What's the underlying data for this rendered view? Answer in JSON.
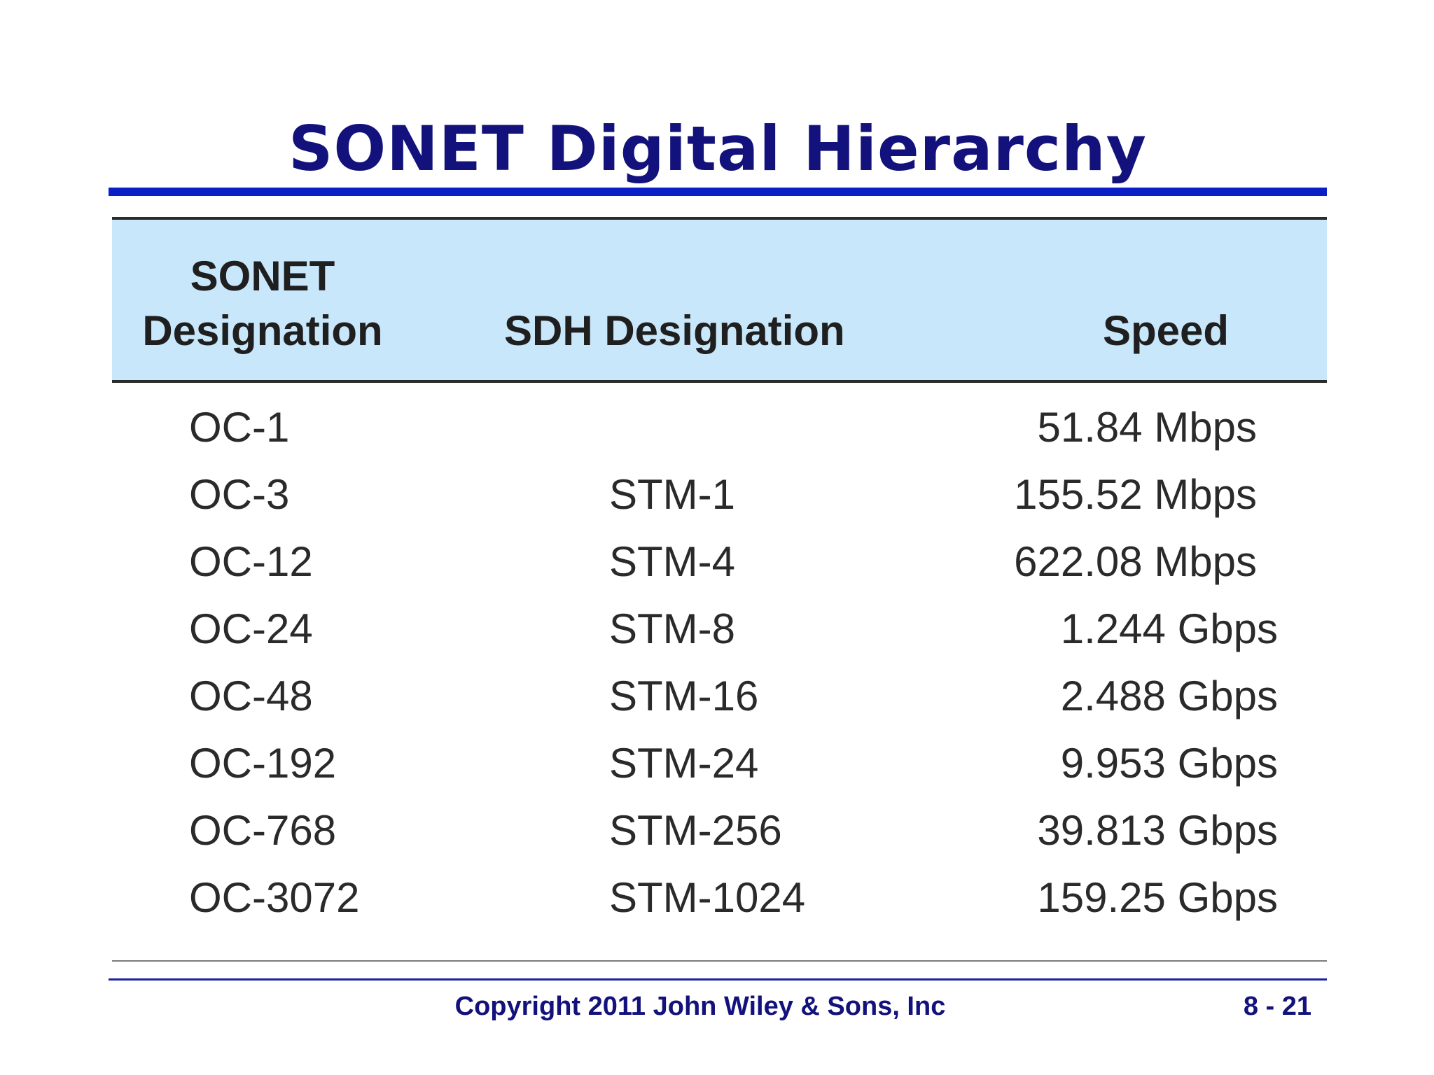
{
  "slide": {
    "title": "SONET Digital Hierarchy"
  },
  "table": {
    "headers": {
      "sonet_line1": "SONET",
      "sonet_line2": "Designation",
      "sdh": "SDH Designation",
      "speed": "Speed"
    },
    "rows": [
      {
        "sonet": "OC-1",
        "sdh": "",
        "speed": "51.84 Mbps"
      },
      {
        "sonet": "OC-3",
        "sdh": "STM-1",
        "speed": "155.52 Mbps"
      },
      {
        "sonet": "OC-12",
        "sdh": "STM-4",
        "speed": "622.08 Mbps"
      },
      {
        "sonet": "OC-24",
        "sdh": "STM-8",
        "speed": "1.244 Gbps"
      },
      {
        "sonet": "OC-48",
        "sdh": "STM-16",
        "speed": "2.488 Gbps"
      },
      {
        "sonet": "OC-192",
        "sdh": "STM-24",
        "speed": "9.953 Gbps"
      },
      {
        "sonet": "OC-768",
        "sdh": "STM-256",
        "speed": "39.813 Gbps"
      },
      {
        "sonet": "OC-3072",
        "sdh": "STM-1024",
        "speed": "159.25 Gbps"
      }
    ]
  },
  "footer": {
    "copyright": "Copyright 2011 John Wiley & Sons, Inc",
    "page": "8 - 21"
  },
  "colors": {
    "title": "#13127c",
    "title_rule": "#0a1fc8",
    "header_bg": "#c8e7fb"
  }
}
